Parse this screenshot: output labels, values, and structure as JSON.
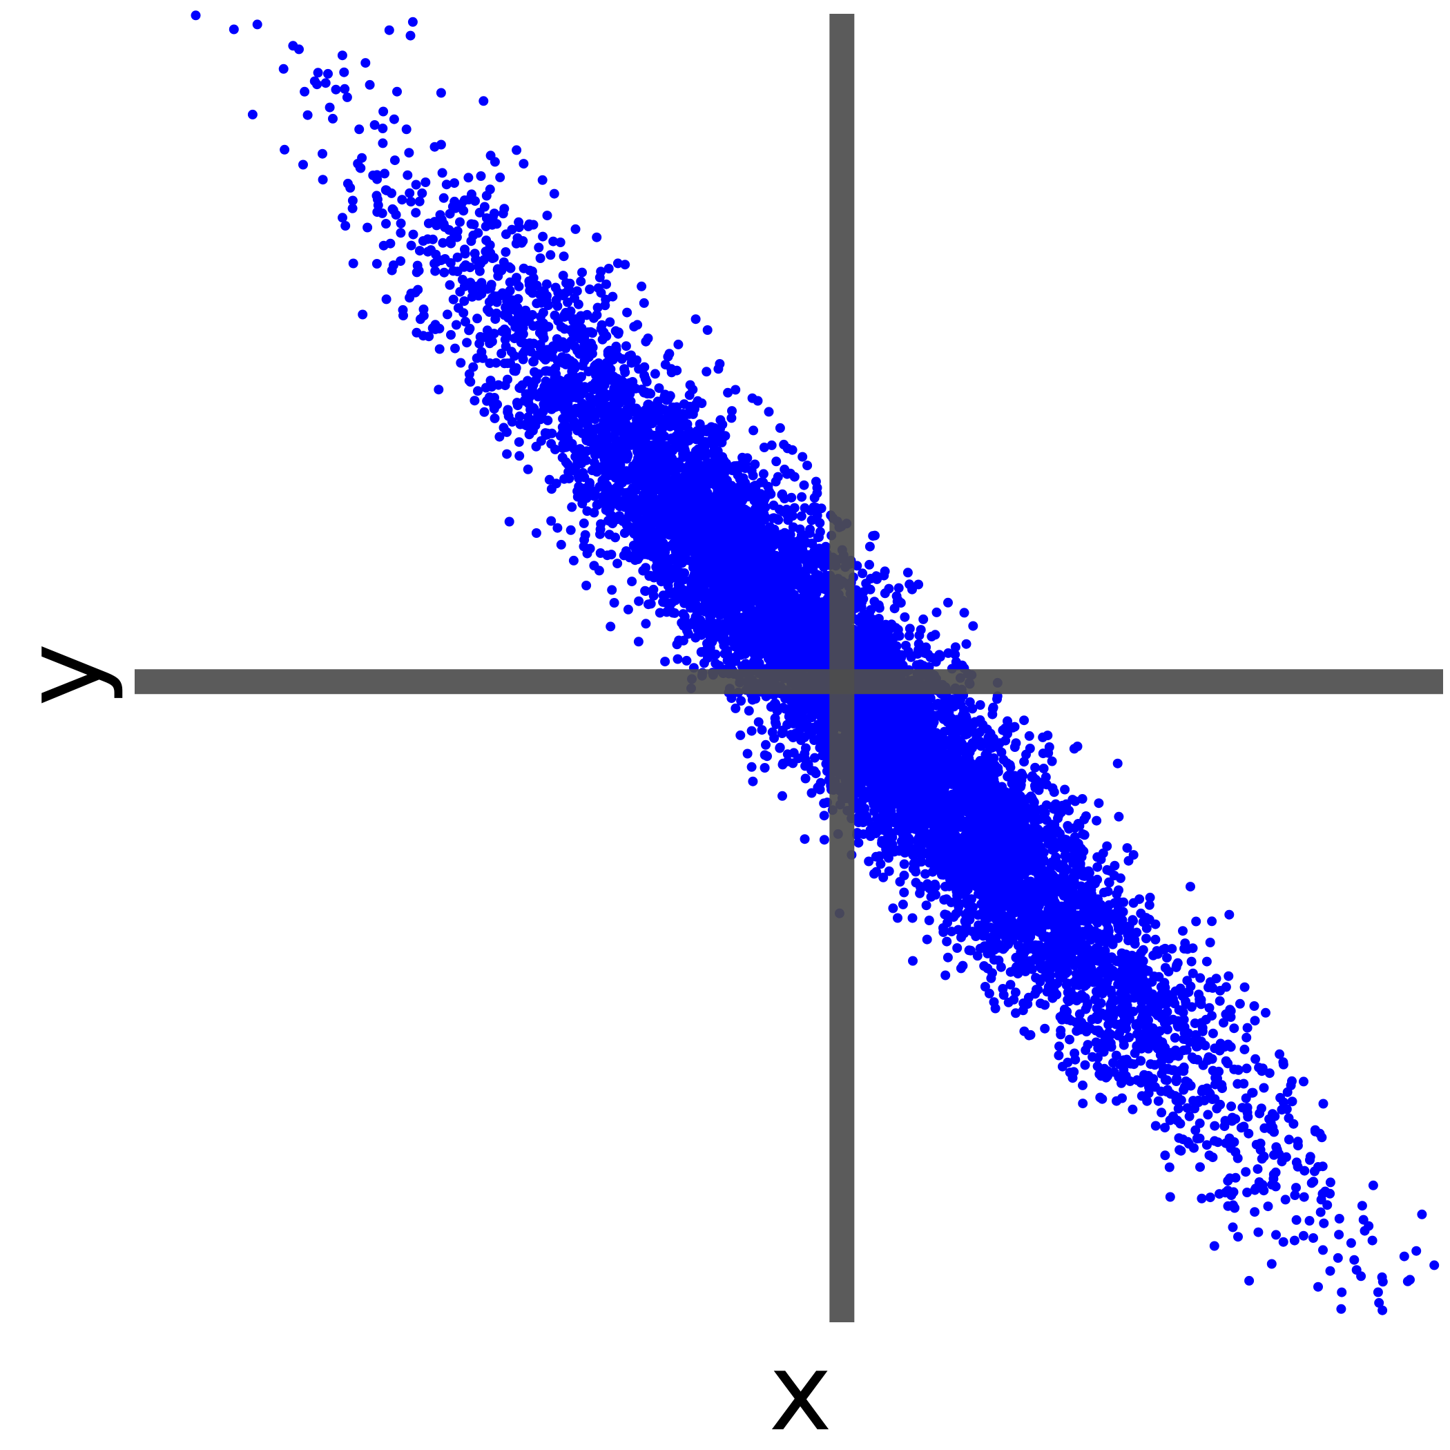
{
  "chart_data": {
    "type": "scatter",
    "title": "",
    "xlabel": "x",
    "ylabel": "y",
    "xlim": [
      -3.0,
      2.55
    ],
    "ylim": [
      -2.35,
      2.45
    ],
    "grid": false,
    "legend": "none",
    "axes_cross_at_origin": true,
    "colors": {
      "points": "#0000ff",
      "axes": "#4d4d4d",
      "background": "#ffffff"
    },
    "series": [
      {
        "points": [
          [
            -2.18,
            2.23
          ],
          [
            -1.92,
            2.39
          ],
          [
            -1.82,
            2.42
          ],
          [
            -1.83,
            2.37
          ],
          [
            -1.7,
            2.16
          ],
          [
            -1.52,
            2.13
          ],
          [
            -1.7,
            1.97
          ],
          [
            -1.49,
            1.93
          ],
          [
            -1.38,
            1.95
          ],
          [
            -1.35,
            1.9
          ],
          [
            -1.45,
            1.85
          ],
          [
            -1.27,
            1.84
          ],
          [
            -1.51,
            1.67
          ],
          [
            -1.33,
            1.67
          ],
          [
            -1.22,
            1.79
          ],
          [
            -1.25,
            1.71
          ],
          [
            -1.13,
            1.66
          ],
          [
            -1.4,
            1.4
          ],
          [
            -1.37,
            1.45
          ],
          [
            -1.04,
            1.63
          ],
          [
            -0.92,
            1.53
          ],
          [
            -0.85,
            1.45
          ],
          [
            -0.62,
            1.33
          ],
          [
            -0.57,
            1.29
          ],
          [
            -0.38,
            1.04
          ],
          [
            -0.31,
            0.99
          ],
          [
            -0.21,
            0.85
          ],
          [
            -0.12,
            0.64
          ],
          [
            0.02,
            0.58
          ],
          [
            0.28,
            0.4
          ],
          [
            0.45,
            0.29
          ],
          [
            0.48,
            0.1
          ],
          [
            0.51,
            0.06
          ],
          [
            0.64,
            -0.1
          ],
          [
            0.88,
            -0.24
          ],
          [
            0.73,
            -0.37
          ],
          [
            1.02,
            -0.43
          ],
          [
            1.08,
            -0.51
          ],
          [
            1.21,
            -0.61
          ],
          [
            1.09,
            -0.82
          ],
          [
            1.33,
            -0.89
          ],
          [
            1.4,
            -0.98
          ],
          [
            1.42,
            -1.04
          ],
          [
            1.63,
            -1.12
          ],
          [
            1.53,
            -1.27
          ],
          [
            1.72,
            -1.27
          ],
          [
            1.65,
            -1.34
          ],
          [
            1.79,
            -1.49
          ],
          [
            1.82,
            -1.62
          ],
          [
            1.91,
            -1.54
          ],
          [
            1.67,
            -1.82
          ],
          [
            1.84,
            -1.8
          ],
          [
            2.02,
            -1.78
          ],
          [
            2.05,
            -1.87
          ],
          [
            2.11,
            -1.97
          ],
          [
            2.25,
            -2.05
          ],
          [
            1.92,
            -2.05
          ],
          [
            2.02,
            -2.22
          ],
          [
            2.12,
            -2.24
          ],
          [
            2.4,
            -2.2
          ],
          [
            -0.48,
            -0.04
          ],
          [
            -0.01,
            -0.85
          ],
          [
            1.58,
            -2.07
          ],
          [
            0.47,
            -0.55
          ],
          [
            1.24,
            -1.16
          ]
        ]
      }
    ]
  }
}
